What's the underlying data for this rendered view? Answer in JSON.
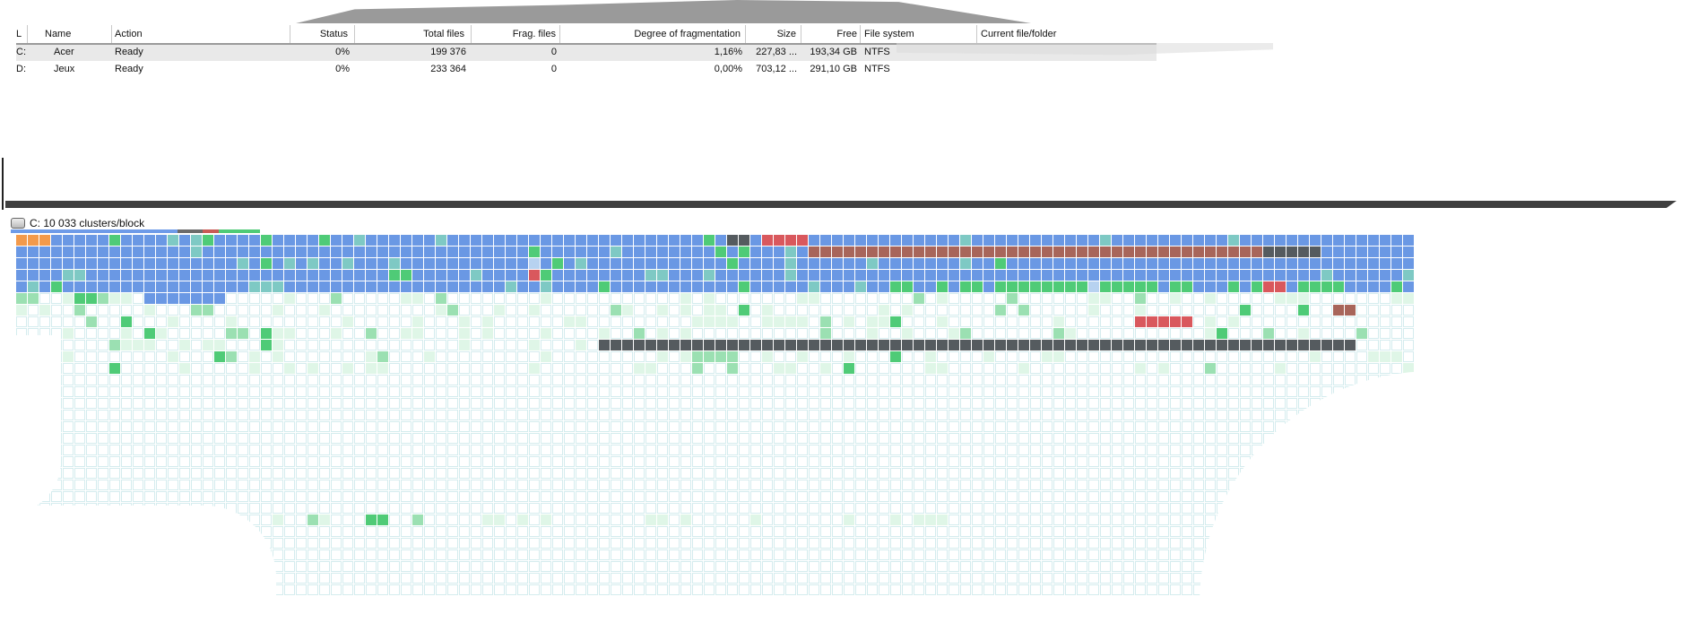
{
  "volumes_table": {
    "columns": [
      {
        "key": "letter",
        "label": "L"
      },
      {
        "key": "name",
        "label": "Name"
      },
      {
        "key": "action",
        "label": "Action"
      },
      {
        "key": "status",
        "label": "Status"
      },
      {
        "key": "total",
        "label": "Total files"
      },
      {
        "key": "frag",
        "label": "Frag. files"
      },
      {
        "key": "degree",
        "label": "Degree of fragmentation"
      },
      {
        "key": "size",
        "label": "Size"
      },
      {
        "key": "free",
        "label": "Free"
      },
      {
        "key": "fs",
        "label": "File system"
      },
      {
        "key": "current",
        "label": "Current file/folder"
      }
    ],
    "rows": [
      {
        "letter": "C:",
        "name": "Acer",
        "action": "Ready",
        "status": "0%",
        "total": "199 376",
        "frag": "0",
        "degree": "1,16%",
        "size": "227,83 ...",
        "free": "193,34 GB",
        "fs": "NTFS",
        "current": ""
      },
      {
        "letter": "D:",
        "name": "Jeux",
        "action": "Ready",
        "status": "0%",
        "total": "233 364",
        "frag": "0",
        "degree": "0,00%",
        "size": "703,12 ...",
        "free": "291,10 GB",
        "fs": "NTFS",
        "current": ""
      }
    ]
  },
  "cluster_map": {
    "title": "C: 10 033 clusters/block",
    "colors": {
      "used": "#6a98e4",
      "free": "#ffffff",
      "system": "#f39a4b",
      "fragmented": "#d9585d",
      "mft": "#a8655a",
      "locked": "#555b5f",
      "recently_moved": "#4fcb77",
      "light_green": "#9be0b2",
      "pale_green": "#dff6e7"
    },
    "progress_fraction": 1.0
  }
}
